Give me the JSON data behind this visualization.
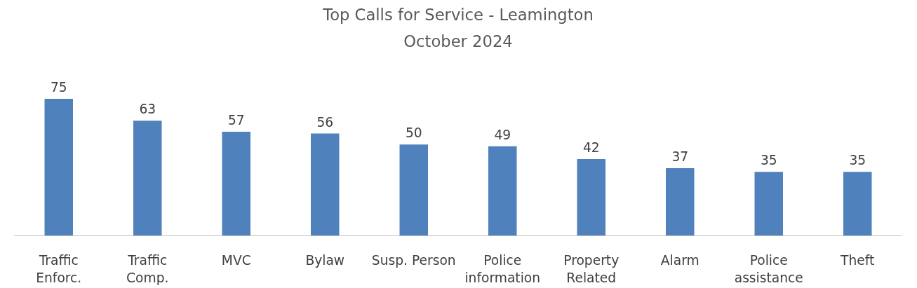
{
  "chart_data": {
    "type": "bar",
    "title": "Top Calls for Service - Leamington",
    "subtitle": "October 2024",
    "categories": [
      "Traffic\nEnforc.",
      "Traffic\nComp.",
      "MVC",
      "Bylaw",
      "Susp. Person",
      "Police\ninformation",
      "Property\nRelated",
      "Alarm",
      "Police\nassistance",
      "Theft"
    ],
    "values": [
      75,
      63,
      57,
      56,
      50,
      49,
      42,
      37,
      35,
      35
    ],
    "color": "#4f81bd",
    "data_labels": true
  }
}
